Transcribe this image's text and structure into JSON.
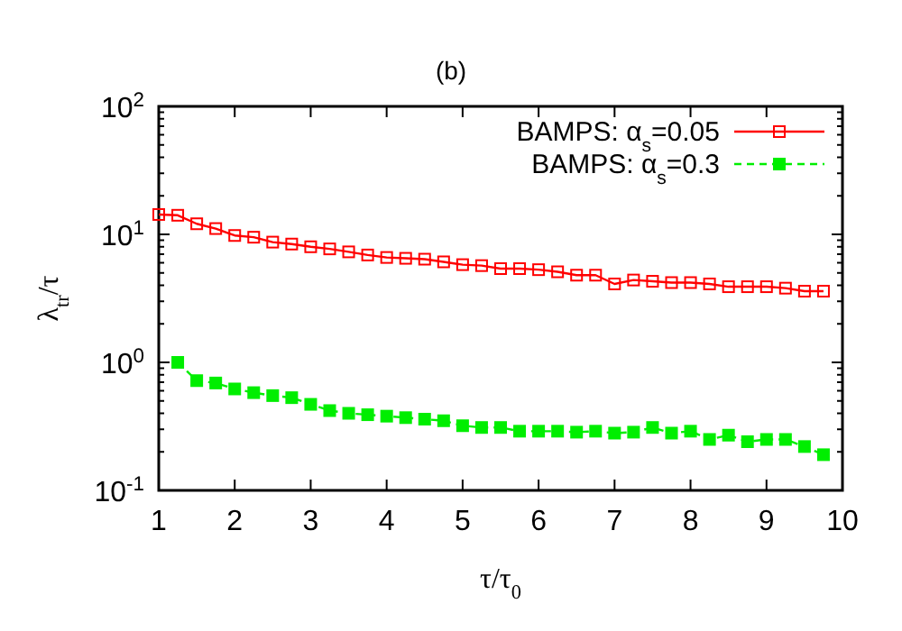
{
  "chart_data": {
    "type": "line",
    "title": "(b)",
    "xlabel": "τ/τ$_{0}$",
    "ylabel": "λ$_{tr}$/τ",
    "log": "y",
    "grid": false,
    "legend": "top right",
    "xlim": [
      1,
      10
    ],
    "xticks": [
      1,
      2,
      3,
      4,
      5,
      6,
      7,
      8,
      9,
      10
    ],
    "ylim": [
      0.1,
      100
    ],
    "yticks": [
      {
        "value": 0.1,
        "label": "10$^{-1}$"
      },
      {
        "value": 1,
        "label": "10$^{0}$"
      },
      {
        "value": 10,
        "label": "10$^{1}$"
      },
      {
        "value": 100,
        "label": "10$^{2}$"
      }
    ],
    "series": [
      {
        "name": "BAMPS: α$_{s}$=0.05",
        "color": "#ff0000",
        "marker": "square",
        "line_style": "solid",
        "x": [
          1,
          1.25,
          1.5,
          1.75,
          2,
          2.25,
          2.5,
          2.75,
          3,
          3.25,
          3.5,
          3.75,
          4,
          4.25,
          4.5,
          4.75,
          5,
          5.25,
          5.5,
          5.75,
          6,
          6.25,
          6.5,
          6.75,
          7,
          7.25,
          7.5,
          7.75,
          8,
          8.25,
          8.5,
          8.75,
          9,
          9.25,
          9.5,
          9.75
        ],
        "values": [
          14.3,
          14.1,
          12.1,
          11.1,
          9.8,
          9.5,
          8.7,
          8.4,
          8.0,
          7.7,
          7.3,
          6.9,
          6.6,
          6.5,
          6.4,
          6.1,
          5.8,
          5.7,
          5.4,
          5.4,
          5.3,
          5.1,
          4.8,
          4.8,
          4.1,
          4.4,
          4.3,
          4.2,
          4.2,
          4.1,
          3.9,
          3.9,
          3.9,
          3.8,
          3.6,
          3.6
        ]
      },
      {
        "name": "BAMPS: α$_{s}$=0.3",
        "color": "#00ee00",
        "marker": "square",
        "line_style": "dashed",
        "x": [
          1.25,
          1.5,
          1.75,
          2,
          2.25,
          2.5,
          2.75,
          3,
          3.25,
          3.5,
          3.75,
          4,
          4.25,
          4.5,
          4.75,
          5,
          5.25,
          5.5,
          5.75,
          6,
          6.25,
          6.5,
          6.75,
          7,
          7.25,
          7.5,
          7.75,
          8,
          8.25,
          8.5,
          8.75,
          9,
          9.25,
          9.5,
          9.75
        ],
        "values": [
          1.0,
          0.72,
          0.69,
          0.62,
          0.58,
          0.55,
          0.53,
          0.47,
          0.42,
          0.4,
          0.39,
          0.38,
          0.37,
          0.36,
          0.35,
          0.32,
          0.31,
          0.31,
          0.29,
          0.29,
          0.29,
          0.285,
          0.29,
          0.28,
          0.285,
          0.31,
          0.28,
          0.29,
          0.25,
          0.27,
          0.24,
          0.25,
          0.25,
          0.22,
          0.19
        ]
      }
    ]
  }
}
